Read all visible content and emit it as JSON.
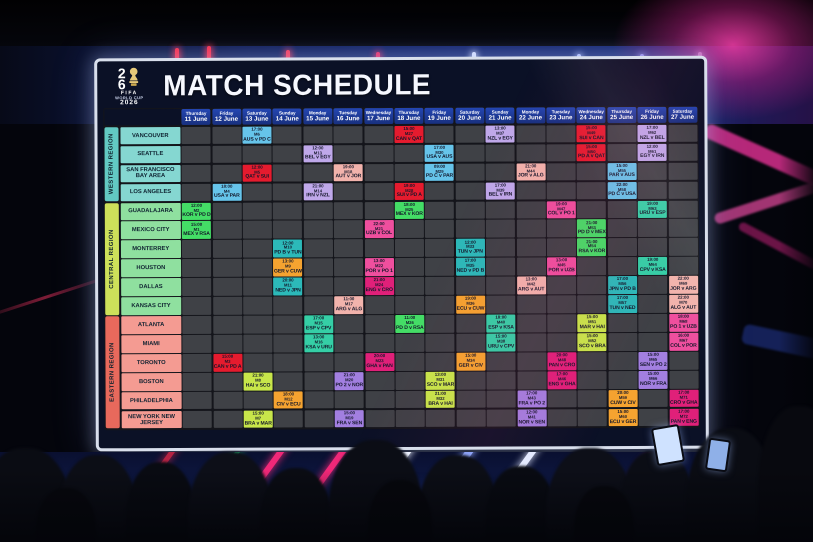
{
  "board": {
    "title": "MATCH SCHEDULE",
    "logo": {
      "digit_top": "2",
      "digit_bottom": "6",
      "fifa": "FIFA",
      "wordmark": "WORLD CUP",
      "year": "2026"
    },
    "columns": [
      {
        "day": "Thursday",
        "date": "11 June"
      },
      {
        "day": "Friday",
        "date": "12 June"
      },
      {
        "day": "Saturday",
        "date": "13 June"
      },
      {
        "day": "Sunday",
        "date": "14 June"
      },
      {
        "day": "Monday",
        "date": "15 June"
      },
      {
        "day": "Tuesday",
        "date": "16 June"
      },
      {
        "day": "Wednesday",
        "date": "17 June"
      },
      {
        "day": "Thursday",
        "date": "18 June"
      },
      {
        "day": "Friday",
        "date": "19 June"
      },
      {
        "day": "Saturday",
        "date": "20 June"
      },
      {
        "day": "Sunday",
        "date": "21 June"
      },
      {
        "day": "Monday",
        "date": "22 June"
      },
      {
        "day": "Tuesday",
        "date": "23 June"
      },
      {
        "day": "Wednesday",
        "date": "24 June"
      },
      {
        "day": "Thursday",
        "date": "25 June"
      },
      {
        "day": "Friday",
        "date": "26 June"
      },
      {
        "day": "Saturday",
        "date": "27 June"
      }
    ],
    "regions": [
      {
        "name": "WESTERN REGION",
        "band_color": "#62c9c3",
        "city_color": "#85d7d1",
        "cities": [
          "VANCOUVER",
          "SEATTLE",
          "SAN FRANCISCO BAY AREA",
          "LOS ANGELES"
        ]
      },
      {
        "name": "CENTRAL REGION",
        "band_color": "#cde05a",
        "city_color": "#8fe09f",
        "cities": [
          "GUADALAJARA",
          "MEXICO CITY",
          "MONTERREY",
          "HOUSTON",
          "DALLAS",
          "KANSAS CITY"
        ]
      },
      {
        "name": "EASTERN REGION",
        "band_color": "#e8695c",
        "city_color": "#f49b92",
        "cities": [
          "ATLANTA",
          "MIAMI",
          "TORONTO",
          "BOSTON",
          "PHILADELPHIA",
          "NEW YORK NEW JERSEY"
        ]
      }
    ],
    "group_colors": {
      "A": "#44dd66",
      "B": "#e51b2e",
      "C": "#c8e64a",
      "D": "#66c4ea",
      "E": "#f5a330",
      "F": "#2cb9b9",
      "G": "#bfa8ea",
      "H": "#35cfa6",
      "I": "#a27fe0",
      "J": "#f2b3ac",
      "K": "#ef4f9e",
      "L": "#e02079"
    },
    "matches": [
      {
        "city": "MEXICO CITY",
        "col": 0,
        "time": "15:00",
        "match": "M1",
        "teams": "MEX v RSA",
        "group": "A"
      },
      {
        "city": "GUADALAJARA",
        "col": 0,
        "time": "12:00",
        "match": "M2",
        "teams": "KOR v PD D",
        "group": "A"
      },
      {
        "city": "TORONTO",
        "col": 1,
        "time": "15:00",
        "match": "M3",
        "teams": "CAN v PD A",
        "group": "B"
      },
      {
        "city": "LOS ANGELES",
        "col": 1,
        "time": "18:00",
        "match": "M4",
        "teams": "USA v PAR",
        "group": "D"
      },
      {
        "city": "SAN FRANCISCO BAY AREA",
        "col": 2,
        "time": "12:00",
        "match": "M5",
        "teams": "QAT v SUI",
        "group": "B"
      },
      {
        "city": "VANCOUVER",
        "col": 2,
        "time": "17:00",
        "match": "M6",
        "teams": "AUS v PD C",
        "group": "D"
      },
      {
        "city": "NEW YORK NEW JERSEY",
        "col": 2,
        "time": "15:00",
        "match": "M7",
        "teams": "BRA v MAR",
        "group": "C"
      },
      {
        "city": "BOSTON",
        "col": 2,
        "time": "21:00",
        "match": "M8",
        "teams": "HAI v SCO",
        "group": "C"
      },
      {
        "city": "HOUSTON",
        "col": 3,
        "time": "13:00",
        "match": "M9",
        "teams": "GER v CUW",
        "group": "E"
      },
      {
        "city": "MONTERREY",
        "col": 3,
        "time": "12:00",
        "match": "M10",
        "teams": "PD B v TUN",
        "group": "F"
      },
      {
        "city": "DALLAS",
        "col": 3,
        "time": "20:00",
        "match": "M11",
        "teams": "NED v JPN",
        "group": "F"
      },
      {
        "city": "PHILADELPHIA",
        "col": 3,
        "time": "18:00",
        "match": "M12",
        "teams": "CIV v ECU",
        "group": "E"
      },
      {
        "city": "SEATTLE",
        "col": 4,
        "time": "12:00",
        "match": "M13",
        "teams": "BEL v EGY",
        "group": "G"
      },
      {
        "city": "LOS ANGELES",
        "col": 4,
        "time": "21:00",
        "match": "M14",
        "teams": "IRN v NZL",
        "group": "G"
      },
      {
        "city": "ATLANTA",
        "col": 4,
        "time": "17:00",
        "match": "M15",
        "teams": "ESP v CPV",
        "group": "H"
      },
      {
        "city": "MIAMI",
        "col": 4,
        "time": "13:00",
        "match": "M16",
        "teams": "KSA v URU",
        "group": "H"
      },
      {
        "city": "KANSAS CITY",
        "col": 5,
        "time": "11:00",
        "match": "M17",
        "teams": "ARG v ALG",
        "group": "J"
      },
      {
        "city": "SAN FRANCISCO BAY AREA",
        "col": 5,
        "time": "19:00",
        "match": "M18",
        "teams": "AUT v JOR",
        "group": "J"
      },
      {
        "city": "NEW YORK NEW JERSEY",
        "col": 5,
        "time": "15:00",
        "match": "M19",
        "teams": "FRA v SEN",
        "group": "I"
      },
      {
        "city": "BOSTON",
        "col": 5,
        "time": "21:00",
        "match": "M20",
        "teams": "PO 2 v NOR",
        "group": "I"
      },
      {
        "city": "MEXICO CITY",
        "col": 6,
        "time": "22:00",
        "match": "M21",
        "teams": "UZB v COL",
        "group": "K"
      },
      {
        "city": "HOUSTON",
        "col": 6,
        "time": "13:00",
        "match": "M22",
        "teams": "POR v PO 1",
        "group": "K"
      },
      {
        "city": "TORONTO",
        "col": 6,
        "time": "20:00",
        "match": "M23",
        "teams": "GHA v PAN",
        "group": "L"
      },
      {
        "city": "DALLAS",
        "col": 6,
        "time": "21:00",
        "match": "M24",
        "teams": "ENG v CRO",
        "group": "L"
      },
      {
        "city": "GUADALAJARA",
        "col": 7,
        "time": "18:00",
        "match": "M25",
        "teams": "MEX v KOR",
        "group": "A"
      },
      {
        "city": "ATLANTA",
        "col": 7,
        "time": "11:00",
        "match": "M26",
        "teams": "PD D v RSA",
        "group": "A"
      },
      {
        "city": "VANCOUVER",
        "col": 7,
        "time": "15:00",
        "match": "M27",
        "teams": "CAN v QAT",
        "group": "B"
      },
      {
        "city": "LOS ANGELES",
        "col": 7,
        "time": "19:00",
        "match": "M28",
        "teams": "SUI v PD A",
        "group": "B"
      },
      {
        "city": "SAN FRANCISCO BAY AREA",
        "col": 8,
        "time": "09:00",
        "match": "M29",
        "teams": "PD C v PAR",
        "group": "D"
      },
      {
        "city": "SEATTLE",
        "col": 8,
        "time": "17:00",
        "match": "M30",
        "teams": "USA v AUS",
        "group": "D"
      },
      {
        "city": "BOSTON",
        "col": 8,
        "time": "13:00",
        "match": "M31",
        "teams": "SCO v MAR",
        "group": "C"
      },
      {
        "city": "PHILADELPHIA",
        "col": 8,
        "time": "21:00",
        "match": "M32",
        "teams": "BRA v HAI",
        "group": "C"
      },
      {
        "city": "MONTERREY",
        "col": 9,
        "time": "12:00",
        "match": "M33",
        "teams": "TUN v JPN",
        "group": "F"
      },
      {
        "city": "TORONTO",
        "col": 9,
        "time": "15:00",
        "match": "M34",
        "teams": "GER v CIV",
        "group": "E"
      },
      {
        "city": "HOUSTON",
        "col": 9,
        "time": "17:00",
        "match": "M35",
        "teams": "NED v PD B",
        "group": "F"
      },
      {
        "city": "KANSAS CITY",
        "col": 9,
        "time": "19:00",
        "match": "M36",
        "teams": "ECU v CUW",
        "group": "E"
      },
      {
        "city": "VANCOUVER",
        "col": 10,
        "time": "13:00",
        "match": "M37",
        "teams": "NZL v EGY",
        "group": "G"
      },
      {
        "city": "MIAMI",
        "col": 10,
        "time": "15:00",
        "match": "M38",
        "teams": "URU v CPV",
        "group": "H"
      },
      {
        "city": "LOS ANGELES",
        "col": 10,
        "time": "17:00",
        "match": "M39",
        "teams": "BEL v IRN",
        "group": "G"
      },
      {
        "city": "ATLANTA",
        "col": 10,
        "time": "18:00",
        "match": "M40",
        "teams": "ESP v KSA",
        "group": "H"
      },
      {
        "city": "NEW YORK NEW JERSEY",
        "col": 11,
        "time": "12:00",
        "match": "M41",
        "teams": "NOR v SEN",
        "group": "I"
      },
      {
        "city": "DALLAS",
        "col": 11,
        "time": "13:00",
        "match": "M42",
        "teams": "ARG v AUT",
        "group": "J"
      },
      {
        "city": "PHILADELPHIA",
        "col": 11,
        "time": "17:00",
        "match": "M43",
        "teams": "FRA v PO 2",
        "group": "I"
      },
      {
        "city": "SAN FRANCISCO BAY AREA",
        "col": 11,
        "time": "21:00",
        "match": "M44",
        "teams": "JOR v ALG",
        "group": "J"
      },
      {
        "city": "HOUSTON",
        "col": 12,
        "time": "13:00",
        "match": "M45",
        "teams": "POR v UZB",
        "group": "K"
      },
      {
        "city": "BOSTON",
        "col": 12,
        "time": "17:00",
        "match": "M46",
        "teams": "ENG v GHA",
        "group": "L"
      },
      {
        "city": "GUADALAJARA",
        "col": 12,
        "time": "19:00",
        "match": "M47",
        "teams": "COL v PO 1",
        "group": "K"
      },
      {
        "city": "TORONTO",
        "col": 12,
        "time": "20:00",
        "match": "M48",
        "teams": "PAN v CRO",
        "group": "L"
      },
      {
        "city": "VANCOUVER",
        "col": 13,
        "time": "15:00",
        "match": "M49",
        "teams": "SUI v CAN",
        "group": "B"
      },
      {
        "city": "SEATTLE",
        "col": 13,
        "time": "15:00",
        "match": "M50",
        "teams": "PD A v QAT",
        "group": "B"
      },
      {
        "city": "ATLANTA",
        "col": 13,
        "time": "15:00",
        "match": "M51",
        "teams": "MAR v HAI",
        "group": "C"
      },
      {
        "city": "MIAMI",
        "col": 13,
        "time": "15:00",
        "match": "M52",
        "teams": "SCO v BRA",
        "group": "C"
      },
      {
        "city": "MEXICO CITY",
        "col": 13,
        "time": "21:00",
        "match": "M53",
        "teams": "PD D v MEX",
        "group": "A"
      },
      {
        "city": "MONTERREY",
        "col": 13,
        "time": "21:00",
        "match": "M54",
        "teams": "RSA v KOR",
        "group": "A"
      },
      {
        "city": "SAN FRANCISCO BAY AREA",
        "col": 14,
        "time": "15:00",
        "match": "M55",
        "teams": "PAR v AUS",
        "group": "D"
      },
      {
        "city": "DALLAS",
        "col": 14,
        "time": "17:00",
        "match": "M56",
        "teams": "JPN v PD B",
        "group": "F"
      },
      {
        "city": "KANSAS CITY",
        "col": 14,
        "time": "17:00",
        "match": "M57",
        "teams": "TUN v NED",
        "group": "F"
      },
      {
        "city": "LOS ANGELES",
        "col": 14,
        "time": "22:00",
        "match": "M58",
        "teams": "PD C v USA",
        "group": "D"
      },
      {
        "city": "PHILADELPHIA",
        "col": 14,
        "time": "20:00",
        "match": "M59",
        "teams": "CUW v CIV",
        "group": "E"
      },
      {
        "city": "NEW YORK NEW JERSEY",
        "col": 14,
        "time": "15:00",
        "match": "M60",
        "teams": "ECU v GER",
        "group": "E"
      },
      {
        "city": "SEATTLE",
        "col": 15,
        "time": "12:00",
        "match": "M61",
        "teams": "EGY v IRN",
        "group": "G"
      },
      {
        "city": "VANCOUVER",
        "col": 15,
        "time": "17:00",
        "match": "M62",
        "teams": "NZL v BEL",
        "group": "G"
      },
      {
        "city": "GUADALAJARA",
        "col": 15,
        "time": "19:00",
        "match": "M63",
        "teams": "URU v ESP",
        "group": "H"
      },
      {
        "city": "HOUSTON",
        "col": 15,
        "time": "19:00",
        "match": "M64",
        "teams": "CPV v KSA",
        "group": "H"
      },
      {
        "city": "TORONTO",
        "col": 15,
        "time": "15:00",
        "match": "M65",
        "teams": "SEN v PO 2",
        "group": "I"
      },
      {
        "city": "BOSTON",
        "col": 15,
        "time": "15:00",
        "match": "M66",
        "teams": "NOR v FRA",
        "group": "I"
      },
      {
        "city": "MIAMI",
        "col": 16,
        "time": "16:00",
        "match": "M67",
        "teams": "COL v POR",
        "group": "K"
      },
      {
        "city": "ATLANTA",
        "col": 16,
        "time": "18:00",
        "match": "M68",
        "teams": "PO 1 v UZB",
        "group": "K"
      },
      {
        "city": "DALLAS",
        "col": 16,
        "time": "22:00",
        "match": "M69",
        "teams": "JOR v ARG",
        "group": "J"
      },
      {
        "city": "KANSAS CITY",
        "col": 16,
        "time": "22:00",
        "match": "M70",
        "teams": "ALG v AUT",
        "group": "J"
      },
      {
        "city": "PHILADELPHIA",
        "col": 16,
        "time": "17:00",
        "match": "M71",
        "teams": "CRO v GHA",
        "group": "L"
      },
      {
        "city": "NEW YORK NEW JERSEY",
        "col": 16,
        "time": "17:00",
        "match": "M72",
        "teams": "PAN v ENG",
        "group": "L"
      }
    ]
  }
}
